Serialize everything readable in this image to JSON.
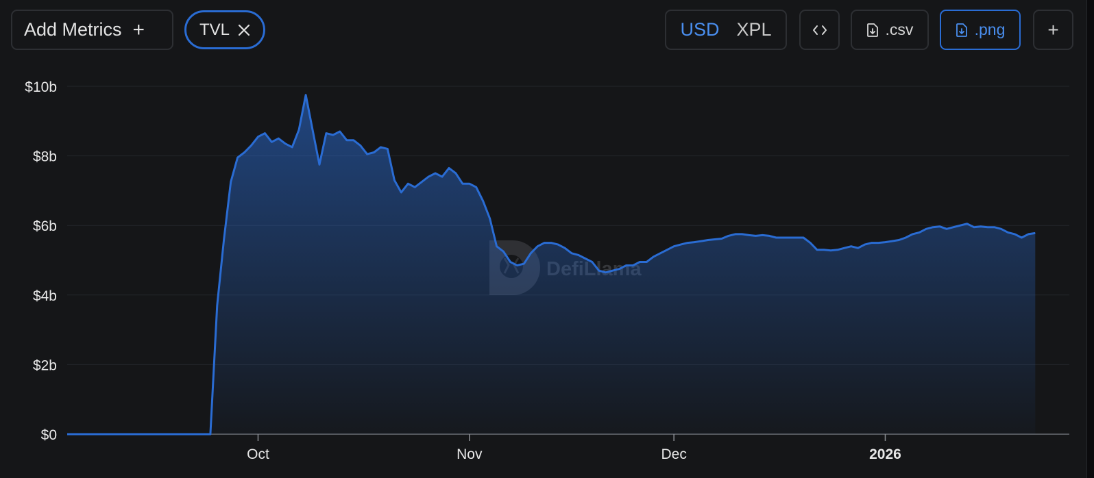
{
  "toolbar": {
    "add_metrics_label": "Add Metrics",
    "add_metrics_plus": "+",
    "metric_chip_label": "TVL",
    "currency_options": [
      "USD",
      "XPL"
    ],
    "currency_selected": "USD",
    "embed_label": "<>",
    "csv_label": ".csv",
    "png_label": ".png",
    "more_label": "+"
  },
  "watermark": "DefiLlama",
  "colors": {
    "line": "#2a6cd3",
    "accent": "#4a8ff0",
    "panel_bg": "#151618"
  },
  "chart_data": {
    "type": "area",
    "title": "",
    "xlabel": "",
    "ylabel": "",
    "ylim": [
      0,
      10
    ],
    "y_unit": "billion USD",
    "y_ticks": [
      {
        "value": 0,
        "label": "$0"
      },
      {
        "value": 2,
        "label": "$2b"
      },
      {
        "value": 4,
        "label": "$4b"
      },
      {
        "value": 6,
        "label": "$6b"
      },
      {
        "value": 8,
        "label": "$8b"
      },
      {
        "value": 10,
        "label": "$10b"
      }
    ],
    "xlim": [
      "2025-09-03",
      "2026-01-28"
    ],
    "x_ticks": [
      {
        "date": "2025-10-01",
        "label": "Oct",
        "bold": false
      },
      {
        "date": "2025-11-01",
        "label": "Nov",
        "bold": false
      },
      {
        "date": "2025-12-01",
        "label": "Dec",
        "bold": false
      },
      {
        "date": "2026-01-01",
        "label": "2026",
        "bold": true
      }
    ],
    "grid": true,
    "legend": "none",
    "series": [
      {
        "points": [
          [
            "2025-09-03",
            0
          ],
          [
            "2025-09-24",
            0
          ],
          [
            "2025-09-25",
            3.7
          ],
          [
            "2025-09-26",
            5.6
          ],
          [
            "2025-09-27",
            7.25
          ],
          [
            "2025-09-28",
            7.95
          ],
          [
            "2025-09-29",
            8.1
          ],
          [
            "2025-09-30",
            8.3
          ],
          [
            "2025-10-01",
            8.55
          ],
          [
            "2025-10-02",
            8.65
          ],
          [
            "2025-10-03",
            8.4
          ],
          [
            "2025-10-04",
            8.5
          ],
          [
            "2025-10-05",
            8.35
          ],
          [
            "2025-10-06",
            8.25
          ],
          [
            "2025-10-07",
            8.75
          ],
          [
            "2025-10-08",
            9.75
          ],
          [
            "2025-10-09",
            8.75
          ],
          [
            "2025-10-10",
            7.75
          ],
          [
            "2025-10-11",
            8.65
          ],
          [
            "2025-10-12",
            8.6
          ],
          [
            "2025-10-13",
            8.7
          ],
          [
            "2025-10-14",
            8.45
          ],
          [
            "2025-10-15",
            8.45
          ],
          [
            "2025-10-16",
            8.3
          ],
          [
            "2025-10-17",
            8.05
          ],
          [
            "2025-10-18",
            8.1
          ],
          [
            "2025-10-19",
            8.25
          ],
          [
            "2025-10-20",
            8.2
          ],
          [
            "2025-10-21",
            7.3
          ],
          [
            "2025-10-22",
            6.95
          ],
          [
            "2025-10-23",
            7.2
          ],
          [
            "2025-10-24",
            7.1
          ],
          [
            "2025-10-25",
            7.25
          ],
          [
            "2025-10-26",
            7.4
          ],
          [
            "2025-10-27",
            7.5
          ],
          [
            "2025-10-28",
            7.4
          ],
          [
            "2025-10-29",
            7.65
          ],
          [
            "2025-10-30",
            7.5
          ],
          [
            "2025-10-31",
            7.2
          ],
          [
            "2025-11-01",
            7.2
          ],
          [
            "2025-11-02",
            7.1
          ],
          [
            "2025-11-03",
            6.7
          ],
          [
            "2025-11-04",
            6.2
          ],
          [
            "2025-11-05",
            5.4
          ],
          [
            "2025-11-06",
            5.25
          ],
          [
            "2025-11-07",
            4.95
          ],
          [
            "2025-11-08",
            4.85
          ],
          [
            "2025-11-09",
            4.9
          ],
          [
            "2025-11-10",
            5.2
          ],
          [
            "2025-11-11",
            5.4
          ],
          [
            "2025-11-12",
            5.5
          ],
          [
            "2025-11-13",
            5.5
          ],
          [
            "2025-11-14",
            5.45
          ],
          [
            "2025-11-15",
            5.35
          ],
          [
            "2025-11-16",
            5.2
          ],
          [
            "2025-11-17",
            5.15
          ],
          [
            "2025-11-18",
            5.05
          ],
          [
            "2025-11-19",
            4.95
          ],
          [
            "2025-11-20",
            4.7
          ],
          [
            "2025-11-21",
            4.65
          ],
          [
            "2025-11-22",
            4.7
          ],
          [
            "2025-11-23",
            4.75
          ],
          [
            "2025-11-24",
            4.85
          ],
          [
            "2025-11-25",
            4.85
          ],
          [
            "2025-11-26",
            4.95
          ],
          [
            "2025-11-27",
            4.95
          ],
          [
            "2025-11-28",
            5.1
          ],
          [
            "2025-11-29",
            5.2
          ],
          [
            "2025-11-30",
            5.3
          ],
          [
            "2025-12-01",
            5.4
          ],
          [
            "2025-12-02",
            5.45
          ],
          [
            "2025-12-03",
            5.5
          ],
          [
            "2025-12-04",
            5.52
          ],
          [
            "2025-12-05",
            5.55
          ],
          [
            "2025-12-06",
            5.58
          ],
          [
            "2025-12-07",
            5.6
          ],
          [
            "2025-12-08",
            5.62
          ],
          [
            "2025-12-09",
            5.7
          ],
          [
            "2025-12-10",
            5.75
          ],
          [
            "2025-12-11",
            5.75
          ],
          [
            "2025-12-12",
            5.72
          ],
          [
            "2025-12-13",
            5.7
          ],
          [
            "2025-12-14",
            5.72
          ],
          [
            "2025-12-15",
            5.7
          ],
          [
            "2025-12-16",
            5.65
          ],
          [
            "2025-12-17",
            5.65
          ],
          [
            "2025-12-18",
            5.65
          ],
          [
            "2025-12-19",
            5.65
          ],
          [
            "2025-12-20",
            5.65
          ],
          [
            "2025-12-21",
            5.5
          ],
          [
            "2025-12-22",
            5.3
          ],
          [
            "2025-12-23",
            5.3
          ],
          [
            "2025-12-24",
            5.28
          ],
          [
            "2025-12-25",
            5.3
          ],
          [
            "2025-12-26",
            5.35
          ],
          [
            "2025-12-27",
            5.4
          ],
          [
            "2025-12-28",
            5.35
          ],
          [
            "2025-12-29",
            5.45
          ],
          [
            "2025-12-30",
            5.5
          ],
          [
            "2025-12-31",
            5.5
          ],
          [
            "2026-01-01",
            5.52
          ],
          [
            "2026-01-02",
            5.55
          ],
          [
            "2026-01-03",
            5.58
          ],
          [
            "2026-01-04",
            5.65
          ],
          [
            "2026-01-05",
            5.75
          ],
          [
            "2026-01-06",
            5.8
          ],
          [
            "2026-01-07",
            5.9
          ],
          [
            "2026-01-08",
            5.95
          ],
          [
            "2026-01-09",
            5.97
          ],
          [
            "2026-01-10",
            5.9
          ],
          [
            "2026-01-11",
            5.95
          ],
          [
            "2026-01-12",
            6.0
          ],
          [
            "2026-01-13",
            6.05
          ],
          [
            "2026-01-14",
            5.95
          ],
          [
            "2026-01-15",
            5.97
          ],
          [
            "2026-01-16",
            5.95
          ],
          [
            "2026-01-17",
            5.95
          ],
          [
            "2026-01-18",
            5.9
          ],
          [
            "2026-01-19",
            5.8
          ],
          [
            "2026-01-20",
            5.75
          ],
          [
            "2026-01-21",
            5.65
          ],
          [
            "2026-01-22",
            5.75
          ],
          [
            "2026-01-23",
            5.78
          ]
        ]
      }
    ]
  }
}
